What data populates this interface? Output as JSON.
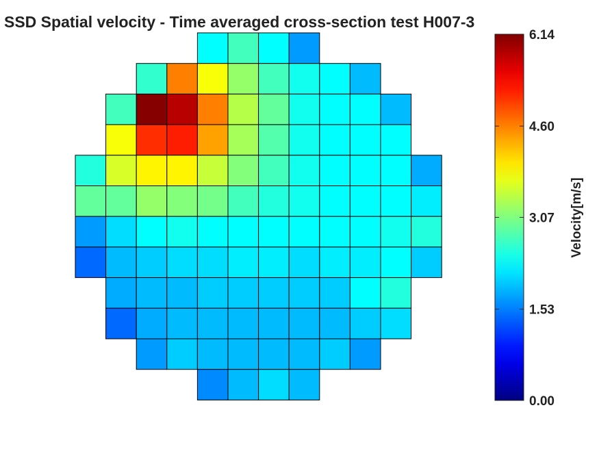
{
  "chart_data": {
    "type": "heatmap",
    "title": "SSD Spatial velocity - Time averaged cross-section test H007-3",
    "colorbar": {
      "label": "Velocity[m/s]",
      "range": [
        0.0,
        6.14
      ],
      "ticks": [
        "6.14",
        "4.60",
        "3.07",
        "1.53",
        "0.00"
      ],
      "colormap": "jet"
    },
    "grid_rows": 12,
    "grid_cols": 12,
    "values": [
      [
        null,
        null,
        null,
        null,
        2.3,
        2.7,
        2.3,
        1.7,
        null,
        null,
        null,
        null
      ],
      [
        null,
        null,
        2.6,
        4.6,
        3.8,
        3.2,
        2.7,
        2.4,
        2.3,
        1.9,
        null,
        null
      ],
      [
        null,
        2.7,
        6.1,
        5.8,
        4.6,
        3.4,
        2.9,
        2.4,
        2.3,
        2.3,
        1.9,
        null
      ],
      [
        null,
        3.8,
        5.1,
        5.2,
        4.4,
        3.3,
        2.8,
        2.4,
        2.3,
        2.3,
        2.3,
        null
      ],
      [
        2.5,
        3.6,
        3.9,
        3.9,
        3.5,
        3.1,
        2.7,
        2.4,
        2.3,
        2.3,
        2.3,
        1.8
      ],
      [
        2.9,
        2.9,
        3.2,
        3.1,
        3.0,
        2.7,
        2.5,
        2.4,
        2.3,
        2.3,
        2.3,
        2.2
      ],
      [
        1.7,
        2.1,
        2.3,
        2.4,
        2.3,
        2.3,
        2.3,
        2.3,
        2.3,
        2.3,
        2.4,
        2.5
      ],
      [
        1.4,
        1.9,
        2.0,
        2.1,
        2.1,
        2.2,
        2.2,
        2.1,
        2.2,
        2.2,
        2.3,
        2.0
      ],
      [
        null,
        1.8,
        1.9,
        1.9,
        2.0,
        2.0,
        2.0,
        2.0,
        2.0,
        2.3,
        2.5,
        null
      ],
      [
        null,
        1.4,
        1.8,
        1.9,
        1.9,
        1.9,
        1.9,
        1.9,
        1.9,
        2.0,
        2.1,
        null
      ],
      [
        null,
        null,
        1.7,
        2.0,
        1.9,
        1.9,
        1.9,
        1.9,
        2.0,
        1.7,
        null,
        null
      ],
      [
        null,
        null,
        null,
        null,
        1.6,
        1.9,
        2.1,
        1.9,
        null,
        null,
        null,
        null
      ]
    ]
  }
}
